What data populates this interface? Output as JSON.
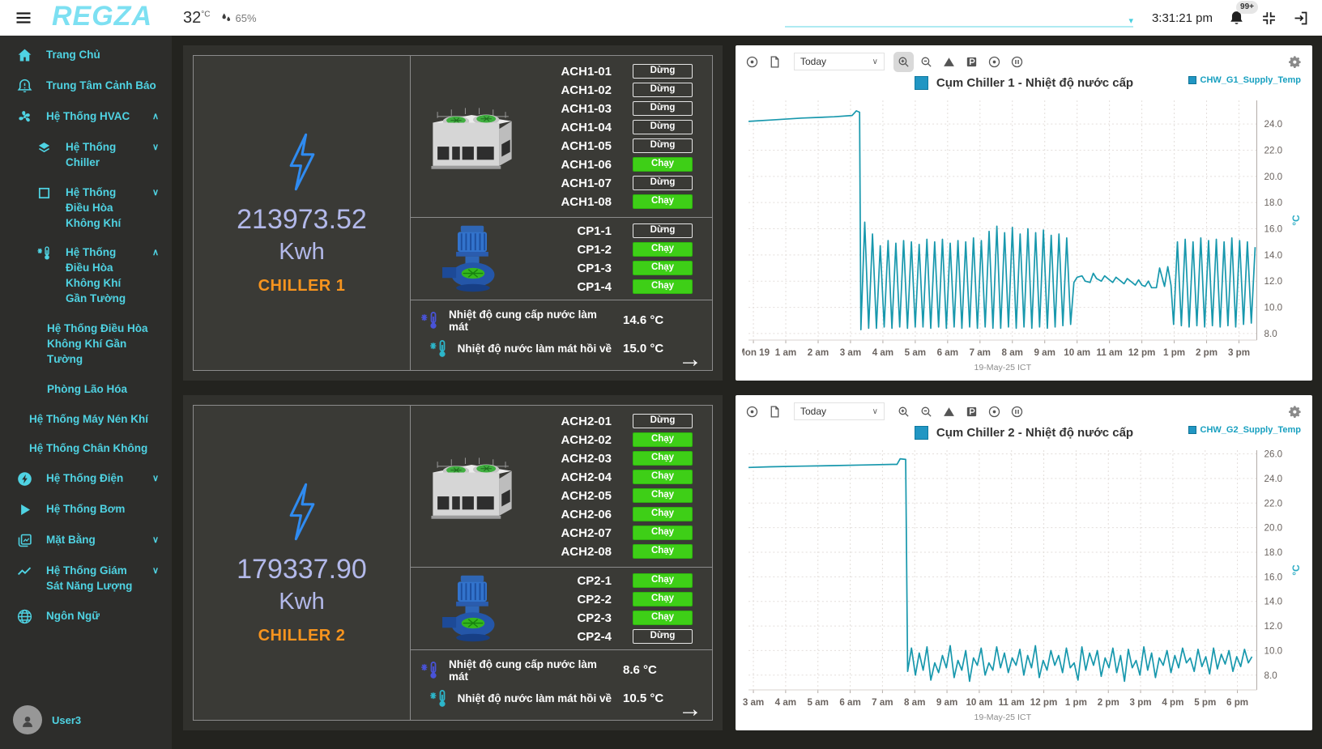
{
  "topbar": {
    "logo": "REGZA",
    "temperature": "32",
    "temp_unit": "°C",
    "humidity": "65%",
    "time": "3:31:21 pm",
    "badge": "99+"
  },
  "sidebar": {
    "user": "User3",
    "items": [
      {
        "label": "Trang Chủ",
        "icon": "home",
        "level": 0
      },
      {
        "label": "Trung Tâm Cảnh Báo",
        "icon": "alarm-bell",
        "level": 0
      },
      {
        "label": "Hệ Thống HVAC",
        "icon": "fan",
        "level": 0,
        "chevron": "up"
      },
      {
        "label": "Hệ Thống Chiller",
        "icon": "layers",
        "level": 1,
        "chevron": "down"
      },
      {
        "label": "Hệ Thống Điều Hòa Không Khí",
        "icon": "square",
        "level": 1,
        "chevron": "down"
      },
      {
        "label": "Hệ Thống Điều Hòa Không Khí Gần Tường",
        "icon": "thermo-snow",
        "level": 1,
        "chevron": "up"
      },
      {
        "label": "Hệ Thống Điều Hòa Không Khí Gần Tường",
        "level": 2
      },
      {
        "label": "Phòng Lão Hóa",
        "level": 2
      },
      {
        "label": "Hệ Thống Máy Nén Khí",
        "level": 1.5
      },
      {
        "label": "Hệ Thống Chân Không",
        "level": 1.5
      },
      {
        "label": "Hệ Thống Điện",
        "icon": "bolt-circle",
        "level": 0,
        "chevron": "down"
      },
      {
        "label": "Hệ Thống Bơm",
        "icon": "play",
        "level": 0
      },
      {
        "label": "Mặt Bằng",
        "icon": "map",
        "level": 0,
        "chevron": "down"
      },
      {
        "label": "Hệ Thống Giám Sát Năng Lượng",
        "icon": "chart-line",
        "level": 0,
        "chevron": "down"
      },
      {
        "label": "Ngôn Ngữ",
        "icon": "globe",
        "level": 0
      }
    ]
  },
  "chillers": [
    {
      "name": "CHILLER 1",
      "energy": "213973.52",
      "unit": "Kwh",
      "ach": [
        {
          "label": "ACH1-01",
          "status": "Dừng",
          "running": false
        },
        {
          "label": "ACH1-02",
          "status": "Dừng",
          "running": false
        },
        {
          "label": "ACH1-03",
          "status": "Dừng",
          "running": false
        },
        {
          "label": "ACH1-04",
          "status": "Dừng",
          "running": false
        },
        {
          "label": "ACH1-05",
          "status": "Dừng",
          "running": false
        },
        {
          "label": "ACH1-06",
          "status": "Chạy",
          "running": true
        },
        {
          "label": "ACH1-07",
          "status": "Dừng",
          "running": false
        },
        {
          "label": "ACH1-08",
          "status": "Chạy",
          "running": true
        }
      ],
      "cp": [
        {
          "label": "CP1-1",
          "status": "Dừng",
          "running": false
        },
        {
          "label": "CP1-2",
          "status": "Chạy",
          "running": true
        },
        {
          "label": "CP1-3",
          "status": "Chạy",
          "running": true
        },
        {
          "label": "CP1-4",
          "status": "Chạy",
          "running": true
        }
      ],
      "supply_label": "Nhiệt độ cung cấp nước làm mát",
      "supply_value": "14.6 °C",
      "return_label": "Nhiệt độ nước làm mát hồi về",
      "return_value": "15.0 °C"
    },
    {
      "name": "CHILLER 2",
      "energy": "179337.90",
      "unit": "Kwh",
      "ach": [
        {
          "label": "ACH2-01",
          "status": "Dừng",
          "running": false
        },
        {
          "label": "ACH2-02",
          "status": "Chạy",
          "running": true
        },
        {
          "label": "ACH2-03",
          "status": "Chạy",
          "running": true
        },
        {
          "label": "ACH2-04",
          "status": "Chạy",
          "running": true
        },
        {
          "label": "ACH2-05",
          "status": "Chạy",
          "running": true
        },
        {
          "label": "ACH2-06",
          "status": "Chạy",
          "running": true
        },
        {
          "label": "ACH2-07",
          "status": "Chạy",
          "running": true
        },
        {
          "label": "ACH2-08",
          "status": "Chạy",
          "running": true
        }
      ],
      "cp": [
        {
          "label": "CP2-1",
          "status": "Chạy",
          "running": true
        },
        {
          "label": "CP2-2",
          "status": "Chạy",
          "running": true
        },
        {
          "label": "CP2-3",
          "status": "Chạy",
          "running": true
        },
        {
          "label": "CP2-4",
          "status": "Dừng",
          "running": false
        }
      ],
      "supply_label": "Nhiệt độ cung cấp nước làm mát",
      "supply_value": "8.6 °C",
      "return_label": "Nhiệt độ nước làm mát hồi về",
      "return_value": "10.5 °C"
    }
  ],
  "chart_data": [
    {
      "type": "line",
      "range": "Today",
      "title": "Cụm Chiller 1 - Nhiệt độ nước cấp",
      "series_name": "CHW_G1_Supply_Temp",
      "unit": "°C",
      "date_label": "19-May-25 ICT",
      "line_color": "#1898ad",
      "xlim": [
        -0.15,
        15.55
      ],
      "ylim": [
        7.5,
        25.8
      ],
      "x_ticks": [
        0,
        1,
        2,
        3,
        4,
        5,
        6,
        7,
        8,
        9,
        10,
        11,
        12,
        13,
        14,
        15
      ],
      "x_tick_labels": [
        "Mon 19",
        "1 am",
        "2 am",
        "3 am",
        "4 am",
        "5 am",
        "6 am",
        "7 am",
        "8 am",
        "9 am",
        "10 am",
        "11 am",
        "12 pm",
        "1 pm",
        "2 pm",
        "3 pm"
      ],
      "y_ticks": [
        8,
        10,
        12,
        14,
        16,
        18,
        20,
        22,
        24
      ],
      "points": [
        [
          -0.15,
          24.2
        ],
        [
          0.5,
          24.3
        ],
        [
          1.5,
          24.45
        ],
        [
          2.5,
          24.55
        ],
        [
          3.05,
          24.65
        ],
        [
          3.18,
          25.0
        ],
        [
          3.28,
          24.9
        ],
        [
          3.32,
          8.3
        ],
        [
          3.44,
          16.5
        ],
        [
          3.56,
          8.4
        ],
        [
          3.68,
          15.6
        ],
        [
          3.8,
          8.4
        ],
        [
          3.92,
          14.7
        ],
        [
          4.04,
          8.5
        ],
        [
          4.16,
          15.1
        ],
        [
          4.28,
          8.4
        ],
        [
          4.4,
          14.9
        ],
        [
          4.52,
          8.5
        ],
        [
          4.64,
          15.1
        ],
        [
          4.76,
          8.4
        ],
        [
          4.88,
          15.0
        ],
        [
          5.0,
          8.5
        ],
        [
          5.12,
          14.8
        ],
        [
          5.24,
          8.5
        ],
        [
          5.36,
          15.2
        ],
        [
          5.48,
          8.4
        ],
        [
          5.6,
          15.0
        ],
        [
          5.72,
          8.5
        ],
        [
          5.84,
          15.2
        ],
        [
          5.96,
          8.4
        ],
        [
          6.08,
          14.9
        ],
        [
          6.2,
          8.5
        ],
        [
          6.32,
          15.1
        ],
        [
          6.44,
          8.4
        ],
        [
          6.56,
          15.0
        ],
        [
          6.68,
          8.5
        ],
        [
          6.8,
          15.3
        ],
        [
          6.92,
          8.4
        ],
        [
          7.04,
          15.1
        ],
        [
          7.16,
          8.5
        ],
        [
          7.28,
          15.8
        ],
        [
          7.4,
          8.4
        ],
        [
          7.52,
          16.2
        ],
        [
          7.64,
          8.4
        ],
        [
          7.76,
          15.7
        ],
        [
          7.88,
          8.5
        ],
        [
          8.0,
          16.1
        ],
        [
          8.12,
          8.4
        ],
        [
          8.24,
          15.6
        ],
        [
          8.36,
          8.5
        ],
        [
          8.48,
          16.0
        ],
        [
          8.6,
          8.4
        ],
        [
          8.72,
          15.7
        ],
        [
          8.84,
          8.5
        ],
        [
          8.96,
          15.9
        ],
        [
          9.08,
          8.4
        ],
        [
          9.2,
          15.5
        ],
        [
          9.32,
          8.5
        ],
        [
          9.44,
          15.6
        ],
        [
          9.56,
          8.6
        ],
        [
          9.68,
          15.3
        ],
        [
          9.8,
          8.7
        ],
        [
          9.9,
          11.9
        ],
        [
          10.0,
          12.3
        ],
        [
          10.15,
          12.4
        ],
        [
          10.25,
          12.0
        ],
        [
          10.4,
          11.9
        ],
        [
          10.5,
          12.6
        ],
        [
          10.6,
          12.2
        ],
        [
          10.75,
          12.0
        ],
        [
          10.85,
          12.4
        ],
        [
          11.0,
          12.1
        ],
        [
          11.1,
          11.9
        ],
        [
          11.2,
          12.3
        ],
        [
          11.35,
          12.0
        ],
        [
          11.45,
          11.8
        ],
        [
          11.55,
          12.2
        ],
        [
          11.7,
          11.9
        ],
        [
          11.8,
          11.7
        ],
        [
          11.9,
          12.1
        ],
        [
          12.0,
          11.7
        ],
        [
          12.1,
          11.6
        ],
        [
          12.2,
          12.0
        ],
        [
          12.3,
          11.5
        ],
        [
          12.45,
          11.5
        ],
        [
          12.55,
          13.0
        ],
        [
          12.7,
          11.6
        ],
        [
          12.8,
          13.1
        ],
        [
          12.9,
          11.7
        ],
        [
          12.98,
          8.7
        ],
        [
          13.1,
          15.0
        ],
        [
          13.22,
          8.6
        ],
        [
          13.34,
          15.2
        ],
        [
          13.46,
          8.5
        ],
        [
          13.58,
          15.0
        ],
        [
          13.7,
          8.6
        ],
        [
          13.82,
          15.3
        ],
        [
          13.94,
          8.5
        ],
        [
          14.06,
          15.1
        ],
        [
          14.18,
          8.6
        ],
        [
          14.3,
          15.2
        ],
        [
          14.42,
          8.5
        ],
        [
          14.54,
          15.0
        ],
        [
          14.66,
          8.6
        ],
        [
          14.78,
          15.3
        ],
        [
          14.9,
          8.5
        ],
        [
          15.02,
          15.1
        ],
        [
          15.14,
          8.7
        ],
        [
          15.26,
          15.0
        ],
        [
          15.38,
          8.8
        ],
        [
          15.5,
          14.6
        ]
      ]
    },
    {
      "type": "line",
      "range": "Today",
      "title": "Cụm Chiller 2 - Nhiệt độ nước cấp",
      "series_name": "CHW_G2_Supply_Temp",
      "unit": "°C",
      "date_label": "19-May-25 ICT",
      "line_color": "#1898ad",
      "xlim": [
        2.85,
        18.6
      ],
      "ylim": [
        6.8,
        26.3
      ],
      "x_ticks": [
        3,
        4,
        5,
        6,
        7,
        8,
        9,
        10,
        11,
        12,
        13,
        14,
        15,
        16,
        17,
        18
      ],
      "x_tick_labels": [
        "3 am",
        "4 am",
        "5 am",
        "6 am",
        "7 am",
        "8 am",
        "9 am",
        "10 am",
        "11 am",
        "12 pm",
        "1 pm",
        "2 pm",
        "3 pm",
        "4 pm",
        "5 pm",
        "6 pm"
      ],
      "y_ticks": [
        8,
        10,
        12,
        14,
        16,
        18,
        20,
        22,
        24,
        26
      ],
      "points": [
        [
          2.85,
          24.9
        ],
        [
          3.5,
          24.95
        ],
        [
          4.5,
          25.0
        ],
        [
          5.5,
          25.05
        ],
        [
          6.5,
          25.1
        ],
        [
          7.3,
          25.15
        ],
        [
          7.45,
          25.15
        ],
        [
          7.55,
          25.6
        ],
        [
          7.72,
          25.55
        ],
        [
          7.78,
          8.3
        ],
        [
          7.9,
          10.2
        ],
        [
          8.02,
          8.0
        ],
        [
          8.14,
          9.8
        ],
        [
          8.26,
          8.4
        ],
        [
          8.38,
          10.3
        ],
        [
          8.5,
          7.6
        ],
        [
          8.62,
          9.0
        ],
        [
          8.74,
          8.2
        ],
        [
          8.86,
          9.6
        ],
        [
          8.98,
          8.6
        ],
        [
          9.1,
          10.4
        ],
        [
          9.22,
          7.8
        ],
        [
          9.34,
          9.2
        ],
        [
          9.46,
          8.4
        ],
        [
          9.58,
          10.0
        ],
        [
          9.7,
          7.5
        ],
        [
          9.82,
          9.4
        ],
        [
          9.94,
          8.8
        ],
        [
          10.06,
          10.2
        ],
        [
          10.18,
          8.0
        ],
        [
          10.3,
          9.0
        ],
        [
          10.42,
          8.4
        ],
        [
          10.54,
          10.3
        ],
        [
          10.66,
          8.6
        ],
        [
          10.78,
          9.8
        ],
        [
          10.9,
          8.2
        ],
        [
          11.02,
          9.4
        ],
        [
          11.14,
          8.8
        ],
        [
          11.26,
          10.1
        ],
        [
          11.38,
          8.0
        ],
        [
          11.5,
          9.6
        ],
        [
          11.62,
          8.6
        ],
        [
          11.74,
          10.4
        ],
        [
          11.86,
          7.8
        ],
        [
          11.98,
          9.2
        ],
        [
          12.1,
          8.4
        ],
        [
          12.22,
          10.0
        ],
        [
          12.34,
          8.8
        ],
        [
          12.46,
          9.6
        ],
        [
          12.58,
          8.2
        ],
        [
          12.7,
          10.2
        ],
        [
          12.82,
          8.6
        ],
        [
          12.94,
          9.0
        ],
        [
          13.06,
          7.6
        ],
        [
          13.18,
          10.3
        ],
        [
          13.3,
          8.4
        ],
        [
          13.42,
          9.8
        ],
        [
          13.54,
          8.8
        ],
        [
          13.66,
          10.0
        ],
        [
          13.78,
          7.9
        ],
        [
          13.9,
          9.4
        ],
        [
          14.02,
          8.6
        ],
        [
          14.14,
          10.2
        ],
        [
          14.26,
          8.2
        ],
        [
          14.38,
          9.6
        ],
        [
          14.5,
          7.5
        ],
        [
          14.62,
          10.1
        ],
        [
          14.74,
          8.6
        ],
        [
          14.86,
          9.2
        ],
        [
          14.98,
          8.0
        ],
        [
          15.1,
          10.3
        ],
        [
          15.22,
          8.4
        ],
        [
          15.34,
          9.8
        ],
        [
          15.46,
          7.8
        ],
        [
          15.58,
          9.4
        ],
        [
          15.7,
          8.8
        ],
        [
          15.82,
          10.0
        ],
        [
          15.94,
          8.2
        ],
        [
          16.06,
          9.6
        ],
        [
          16.18,
          8.6
        ],
        [
          16.3,
          10.2
        ],
        [
          16.42,
          9.0
        ],
        [
          16.54,
          9.4
        ],
        [
          16.66,
          8.3
        ],
        [
          16.78,
          10.1
        ],
        [
          16.9,
          8.7
        ],
        [
          17.02,
          9.5
        ],
        [
          17.14,
          8.1
        ],
        [
          17.26,
          10.2
        ],
        [
          17.38,
          8.5
        ],
        [
          17.5,
          9.7
        ],
        [
          17.62,
          8.9
        ],
        [
          17.74,
          10.0
        ],
        [
          17.86,
          8.3
        ],
        [
          17.98,
          9.5
        ],
        [
          18.1,
          8.7
        ],
        [
          18.22,
          10.1
        ],
        [
          18.34,
          9.0
        ],
        [
          18.45,
          9.5
        ]
      ]
    }
  ]
}
